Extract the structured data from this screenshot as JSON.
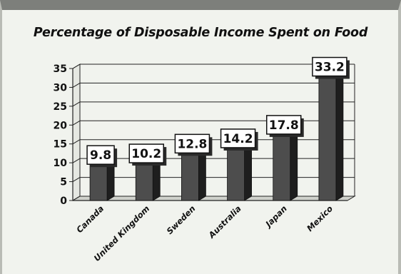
{
  "chart_data": {
    "type": "bar",
    "title": "Percentage of Disposable Income Spent on Food",
    "xlabel": "",
    "ylabel": "",
    "categories": [
      "Canada",
      "United Kingdom",
      "Sweden",
      "Australia",
      "Japan",
      "Mexico"
    ],
    "values": [
      9.8,
      10.2,
      12.8,
      14.2,
      17.8,
      33.2
    ],
    "data_labels": [
      "9.8",
      "10.2",
      "12.8",
      "14.2",
      "17.8",
      "33.2"
    ],
    "ylim": [
      0,
      35
    ],
    "yticks": [
      0,
      5,
      10,
      15,
      20,
      25,
      30,
      35
    ],
    "ytick_labels": [
      "0",
      "5",
      "10",
      "15",
      "20",
      "25",
      "30",
      "35"
    ],
    "grid": true,
    "legend": "none",
    "colors": {
      "bar_front": "#4d4d4d",
      "bar_side": "#1e1e1e",
      "bar_top": "#6a6a6a",
      "background": "#f1f3ee",
      "label_box": "#ffffff"
    }
  }
}
